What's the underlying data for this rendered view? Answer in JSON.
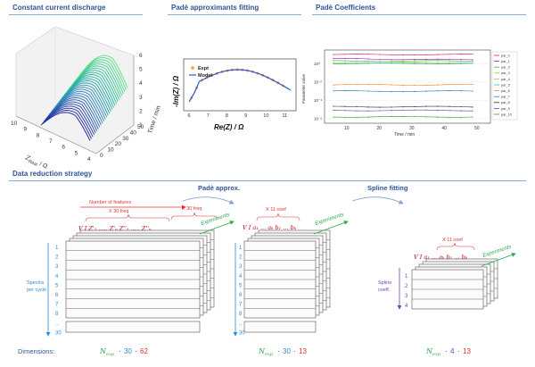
{
  "titles": {
    "discharge": "Constant current discharge",
    "pade_fit": "Padè approximants fitting",
    "pade_coef": "Padè Coefficients",
    "strategy": "Data reduction strategy"
  },
  "plot3d": {
    "zlabel": "Time / min",
    "xlabel": "Z",
    "xlabel_sub": "Real",
    "xlabel_unit": " / Ω",
    "x_ticks": [
      "10",
      "9",
      "8",
      "7",
      "6",
      "5",
      "4"
    ],
    "z_ticks": [
      "0",
      "10",
      "20",
      "30",
      "40",
      "50"
    ],
    "y_ticks": [
      "1",
      "2",
      "3",
      "4",
      "5",
      "6"
    ],
    "gradient": [
      "#1a1a9a",
      "#2f7fc1",
      "#22b8a0",
      "#5ee08a"
    ]
  },
  "fit_plot": {
    "legend": [
      "Expt",
      "Model"
    ],
    "xlabel": "Re(Z) / Ω",
    "ylabel": "-Im(Z) / Ω",
    "x_ticks": [
      "6",
      "7",
      "8",
      "9",
      "10",
      "11"
    ],
    "colors": {
      "expt": "#f5a623",
      "model": "#2d55d8"
    }
  },
  "coef_chart": {
    "xlabel": "Time / min",
    "ylabel": "Parameter value",
    "x_ticks": [
      "10",
      "20",
      "30",
      "40",
      "50"
    ],
    "y_ticks": [
      "10⁰",
      "10⁻²",
      "10⁻⁴",
      "10⁻⁶"
    ],
    "series": [
      {
        "name": "par_0",
        "color": "#e6194b",
        "level": 1.0
      },
      {
        "name": "par_1",
        "color": "#911eb4",
        "level": 0.55
      },
      {
        "name": "par_2",
        "color": "#3cb44b",
        "level": 0.3
      },
      {
        "name": "par_3",
        "color": "#bcbd22",
        "level": 0.12
      },
      {
        "name": "par_4",
        "color": "#9acd32",
        "level": 0.05
      },
      {
        "name": "par_5",
        "color": "#17becf",
        "level": 0.02
      },
      {
        "name": "par_6",
        "color": "#ff7f0e",
        "level": -2.3
      },
      {
        "name": "par_7",
        "color": "#1f77b4",
        "level": -3.0
      },
      {
        "name": "par_8",
        "color": "#2c2c2c",
        "level": -4.7
      },
      {
        "name": "par_9",
        "color": "#6a3d9a",
        "level": -5.1
      },
      {
        "name": "par_10",
        "color": "#2ca02c",
        "level": -5.8
      }
    ]
  },
  "strategy": {
    "pade_arrow": "Padè approx.",
    "spline_arrow": "Spline fitting",
    "block1": {
      "features": "Number of features",
      "x30a": "X 30 freq",
      "x30b": "X 30 freq",
      "header": "V   I   Z'₁ ..... Z'ₙ  Z''₁ ..... Z''ₙ",
      "experiments": "Experiments",
      "spectra": "Spectra per cycle",
      "rows": [
        "1",
        "2",
        "3",
        "4",
        "5",
        "6",
        "7",
        "8",
        "..",
        "30"
      ]
    },
    "block2": {
      "coef": "X 11 coef",
      "header": "V  I  a₁ ... aₖ  b₁ ... bₖ",
      "experiments": "Experiments",
      "rows": [
        "1",
        "2",
        "3",
        "4",
        "5",
        "6",
        "7",
        "8",
        "..",
        "30"
      ]
    },
    "block3": {
      "coef": "X 11 coef",
      "header": "V I a₁ ... aₖ b₁ ... bₖ",
      "experiments": "Experiments",
      "spline": "Spline coeff.",
      "rows": [
        "1",
        "2",
        "3",
        "4"
      ]
    },
    "dimensions_label": "Dimensions:",
    "dims": [
      {
        "n": "N",
        "sub": "exp",
        "a": "30",
        "b": "62"
      },
      {
        "n": "N",
        "sub": "exp",
        "a": "30",
        "b": "13"
      },
      {
        "n": "N",
        "sub": "exp",
        "a": "4",
        "b": "13"
      }
    ]
  }
}
